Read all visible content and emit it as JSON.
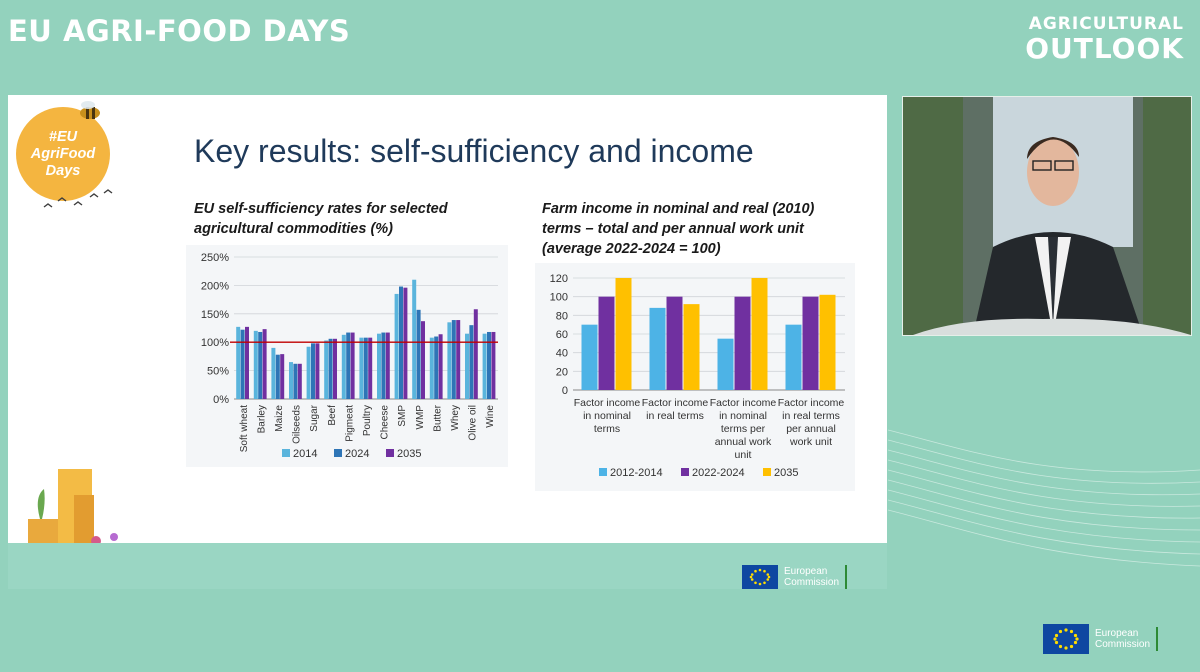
{
  "event": {
    "title": "EU AGRI-FOOD DAYS"
  },
  "outlook_logo": {
    "line1": "AGRICULTURAL",
    "line2": "OUTLOOK"
  },
  "badge": {
    "line1": "#EU",
    "line2": "AgriFood",
    "line3": "Days"
  },
  "slide": {
    "title": "Key results: self-sufficiency and income"
  },
  "ec_logo": {
    "line1": "European",
    "line2": "Commission"
  },
  "colors": {
    "bg": "#93d2bd",
    "light_blue": "#5ab4dc",
    "mid_blue": "#2e75b6",
    "purple": "#7030a0",
    "yellow": "#ffc000",
    "ref_line": "#c00000"
  },
  "chart_data": [
    {
      "type": "bar",
      "title": "EU self-sufficiency rates for selected agricultural commodities (%)",
      "categories": [
        "Soft wheat",
        "Barley",
        "Maize",
        "Oilseeds",
        "Sugar",
        "Beef",
        "Pigmeat",
        "Poultry",
        "Cheese",
        "SMP",
        "WMP",
        "Butter",
        "Whey",
        "Olive oil",
        "Wine"
      ],
      "series": [
        {
          "name": "2014",
          "color": "#5ab4dc",
          "values": [
            127,
            120,
            90,
            65,
            92,
            103,
            113,
            108,
            115,
            185,
            210,
            108,
            135,
            115,
            115
          ]
        },
        {
          "name": "2024",
          "color": "#2e75b6",
          "values": [
            122,
            118,
            78,
            62,
            98,
            106,
            117,
            108,
            117,
            198,
            157,
            110,
            139,
            130,
            118
          ]
        },
        {
          "name": "2035",
          "color": "#7030a0",
          "values": [
            127,
            123,
            79,
            62,
            98,
            106,
            117,
            108,
            117,
            196,
            137,
            114,
            139,
            158,
            118
          ]
        }
      ],
      "ylim": [
        0,
        250
      ],
      "yticks": [
        "0%",
        "50%",
        "100%",
        "150%",
        "200%",
        "250%"
      ],
      "reference_line": 100,
      "legend": "bottom"
    },
    {
      "type": "bar",
      "title": "Farm income in nominal and real (2010) terms – total and per annual work unit (average 2022-2024 = 100)",
      "categories": [
        "Factor income in nominal terms",
        "Factor income in real terms",
        "Factor income in nominal terms per annual work unit",
        "Factor income in real terms per annual work unit"
      ],
      "series": [
        {
          "name": "2012-2014",
          "color": "#4db3e6",
          "values": [
            70,
            88,
            55,
            70
          ]
        },
        {
          "name": "2022-2024",
          "color": "#7030a0",
          "values": [
            100,
            100,
            100,
            100
          ]
        },
        {
          "name": "2035",
          "color": "#ffc000",
          "values": [
            120,
            92,
            120,
            102
          ]
        }
      ],
      "ylim": [
        0,
        120
      ],
      "yticks": [
        "0",
        "20",
        "40",
        "60",
        "80",
        "100",
        "120"
      ],
      "legend": "bottom"
    }
  ]
}
